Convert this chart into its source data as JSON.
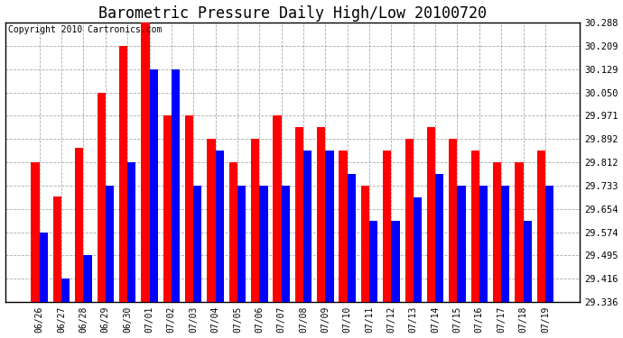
{
  "title": "Barometric Pressure Daily High/Low 20100720",
  "copyright": "Copyright 2010 Cartronics.com",
  "dates": [
    "06/26",
    "06/27",
    "06/28",
    "06/29",
    "06/30",
    "07/01",
    "07/02",
    "07/03",
    "07/04",
    "07/05",
    "07/06",
    "07/07",
    "07/08",
    "07/09",
    "07/10",
    "07/11",
    "07/12",
    "07/13",
    "07/14",
    "07/15",
    "07/16",
    "07/17",
    "07/18",
    "07/19"
  ],
  "highs": [
    29.812,
    29.695,
    29.863,
    30.05,
    30.209,
    30.288,
    29.971,
    29.971,
    29.892,
    29.812,
    29.892,
    29.971,
    29.931,
    29.931,
    29.852,
    29.733,
    29.852,
    29.892,
    29.931,
    29.892,
    29.852,
    29.812,
    29.812,
    29.852
  ],
  "lows": [
    29.574,
    29.416,
    29.495,
    29.733,
    29.812,
    30.129,
    30.129,
    29.733,
    29.852,
    29.733,
    29.733,
    29.733,
    29.852,
    29.852,
    29.773,
    29.614,
    29.614,
    29.693,
    29.773,
    29.733,
    29.733,
    29.733,
    29.614,
    29.733
  ],
  "ymin": 29.336,
  "ymax": 30.288,
  "yticks": [
    29.336,
    29.416,
    29.495,
    29.574,
    29.654,
    29.733,
    29.812,
    29.892,
    29.971,
    30.05,
    30.129,
    30.209,
    30.288
  ],
  "bar_color_high": "#ff0000",
  "bar_color_low": "#0000ff",
  "bg_color": "#ffffff",
  "grid_color": "#aaaaaa",
  "title_fontsize": 12,
  "copyright_fontsize": 7.0,
  "bar_width": 0.38
}
